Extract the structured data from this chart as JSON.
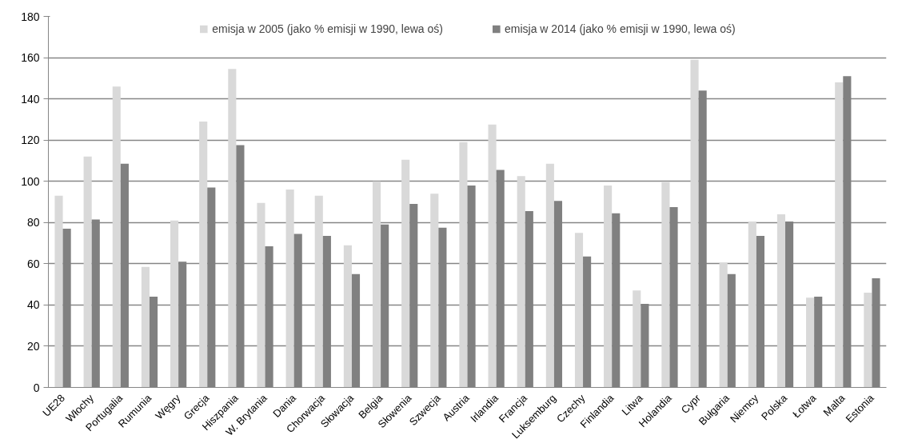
{
  "chart_data": {
    "type": "bar",
    "categories": [
      "UE28",
      "Włochy",
      "Portugalia",
      "Rumunia",
      "Węgry",
      "Grecja",
      "Hiszpania",
      "W. Brytania",
      "Dania",
      "Chorwacja",
      "Słowacja",
      "Belgia",
      "Słowenia",
      "Szwecja",
      "Austria",
      "Irlandia",
      "Francja",
      "Luksemburg",
      "Czechy",
      "Finlandia",
      "Litwa",
      "Holandia",
      "Cypr",
      "Bułgaria",
      "Niemcy",
      "Polska",
      "Łotwa",
      "Malta",
      "Estonia"
    ],
    "series": [
      {
        "name": "emisja w 2005 (jako % emisji w 1990, lewa oś)",
        "color": "#d9d9d9",
        "values": [
          93,
          112,
          146,
          58.5,
          81,
          129,
          154.5,
          89.5,
          96,
          93,
          69,
          100,
          110.5,
          94,
          119,
          127.5,
          102.5,
          108.5,
          75,
          98,
          47,
          99.5,
          159,
          60.5,
          80.5,
          84,
          43.5,
          148,
          46
        ]
      },
      {
        "name": "emisja w 2014 (jako % emisji w 1990, lewa oś)",
        "color": "#808080",
        "values": [
          77,
          81.5,
          108.5,
          44,
          61,
          97,
          117.5,
          68.5,
          74.5,
          73.5,
          55,
          79,
          89,
          77.5,
          98,
          105.5,
          85.5,
          90.5,
          63.5,
          84.5,
          40.5,
          87.5,
          144,
          55,
          73.5,
          80.5,
          44,
          151,
          53
        ]
      }
    ],
    "ylim": [
      0,
      180
    ],
    "yticks": [
      0,
      20,
      40,
      60,
      80,
      100,
      120,
      140,
      160,
      180
    ],
    "grid": "y",
    "legend": "top"
  }
}
